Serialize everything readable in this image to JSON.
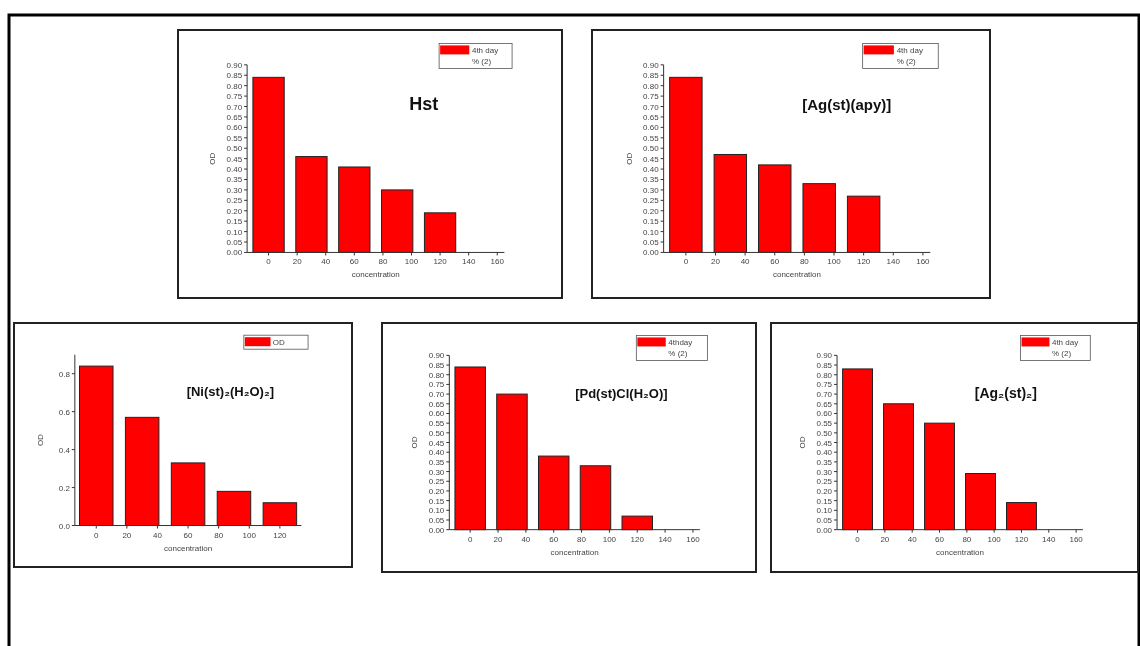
{
  "chart_data": [
    {
      "type": "bar",
      "title": "Hst",
      "xlabel": "concentration",
      "ylabel": "OD",
      "x": [
        0,
        30,
        60,
        90,
        120
      ],
      "xlim": [
        -15,
        165
      ],
      "xticks": [
        0,
        20,
        40,
        60,
        80,
        100,
        120,
        140,
        160
      ],
      "ylim": [
        0,
        0.9
      ],
      "yticks": [
        {
          "value": 0,
          "label": "0.00"
        },
        {
          "value": 0.05,
          "label": "0.05"
        },
        {
          "value": 0.1,
          "label": "0.10"
        },
        {
          "value": 0.15,
          "label": "0.15"
        },
        {
          "value": 0.2,
          "label": "0.20"
        },
        {
          "value": 0.25,
          "label": "0.25"
        },
        {
          "value": 0.3,
          "label": "0.30"
        },
        {
          "value": 0.35,
          "label": "0.35"
        },
        {
          "value": 0.4,
          "label": "0.40"
        },
        {
          "value": 0.45,
          "label": "0.45"
        },
        {
          "value": 0.5,
          "label": "0.50"
        },
        {
          "value": 0.55,
          "label": "0.55"
        },
        {
          "value": 0.6,
          "label": "0.60"
        },
        {
          "value": 0.65,
          "label": "0.65"
        },
        {
          "value": 0.7,
          "label": "0.70"
        },
        {
          "value": 0.75,
          "label": "0.75"
        },
        {
          "value": 0.8,
          "label": "0.80"
        },
        {
          "value": 0.85,
          "label": "0.85"
        },
        {
          "value": 0.9,
          "label": "0.90"
        }
      ],
      "legend": "top right",
      "series": [
        {
          "name": "4th day",
          "color": "#ff0000",
          "values": [
            0.84,
            0.46,
            0.41,
            0.3,
            0.19
          ]
        },
        {
          "name": "% (2)",
          "values": [
            null,
            null,
            null,
            null,
            null
          ]
        }
      ]
    },
    {
      "type": "bar",
      "title": "[Ag(st)(apy)]",
      "xlabel": "concentration",
      "ylabel": "OD",
      "x": [
        0,
        30,
        60,
        90,
        120
      ],
      "xlim": [
        -15,
        165
      ],
      "xticks": [
        0,
        20,
        40,
        60,
        80,
        100,
        120,
        140,
        160
      ],
      "ylim": [
        0,
        0.9
      ],
      "yticks": [
        {
          "value": 0,
          "label": "0.00"
        },
        {
          "value": 0.05,
          "label": "0.05"
        },
        {
          "value": 0.1,
          "label": "0.10"
        },
        {
          "value": 0.15,
          "label": "0.15"
        },
        {
          "value": 0.2,
          "label": "0.20"
        },
        {
          "value": 0.25,
          "label": "0.25"
        },
        {
          "value": 0.3,
          "label": "0.30"
        },
        {
          "value": 0.35,
          "label": "0.35"
        },
        {
          "value": 0.4,
          "label": "0.40"
        },
        {
          "value": 0.45,
          "label": "0.45"
        },
        {
          "value": 0.5,
          "label": "0.50"
        },
        {
          "value": 0.55,
          "label": "0.55"
        },
        {
          "value": 0.6,
          "label": "0.60"
        },
        {
          "value": 0.65,
          "label": "0.65"
        },
        {
          "value": 0.7,
          "label": "0.70"
        },
        {
          "value": 0.75,
          "label": "0.75"
        },
        {
          "value": 0.8,
          "label": "0.80"
        },
        {
          "value": 0.85,
          "label": "0.85"
        },
        {
          "value": 0.9,
          "label": "0.90"
        }
      ],
      "legend": "top right",
      "series": [
        {
          "name": "4th day",
          "color": "#ff0000",
          "values": [
            0.84,
            0.47,
            0.42,
            0.33,
            0.27
          ]
        },
        {
          "name": "% (2)",
          "values": [
            null,
            null,
            null,
            null,
            null
          ]
        }
      ]
    },
    {
      "type": "bar",
      "title": "[Ni(st)₂(H₂O)₂]",
      "xlabel": "concentration",
      "ylabel": "OD",
      "x": [
        0,
        30,
        60,
        90,
        120
      ],
      "xlim": [
        -14,
        134
      ],
      "xticks": [
        0,
        20,
        40,
        60,
        80,
        100,
        120
      ],
      "ylim": [
        0,
        0.9
      ],
      "yticks": [
        {
          "value": 0,
          "label": "0.0"
        },
        {
          "value": 0.2,
          "label": "0.2"
        },
        {
          "value": 0.4,
          "label": "0.4"
        },
        {
          "value": 0.6,
          "label": "0.6"
        },
        {
          "value": 0.8,
          "label": "0.8"
        }
      ],
      "legend": "top right",
      "series": [
        {
          "name": "OD",
          "color": "#ff0000",
          "values": [
            0.84,
            0.57,
            0.33,
            0.18,
            0.12
          ]
        }
      ]
    },
    {
      "type": "bar",
      "title": "[Pd(st)Cl(H₂O)]",
      "xlabel": "concentration",
      "ylabel": "OD",
      "x": [
        0,
        30,
        60,
        90,
        120
      ],
      "xlim": [
        -15,
        165
      ],
      "xticks": [
        0,
        20,
        40,
        60,
        80,
        100,
        120,
        140,
        160
      ],
      "ylim": [
        0,
        0.9
      ],
      "yticks": [
        {
          "value": 0,
          "label": "0.00"
        },
        {
          "value": 0.05,
          "label": "0.05"
        },
        {
          "value": 0.1,
          "label": "0.10"
        },
        {
          "value": 0.15,
          "label": "0.15"
        },
        {
          "value": 0.2,
          "label": "0.20"
        },
        {
          "value": 0.25,
          "label": "0.25"
        },
        {
          "value": 0.3,
          "label": "0.30"
        },
        {
          "value": 0.35,
          "label": "0.35"
        },
        {
          "value": 0.4,
          "label": "0.40"
        },
        {
          "value": 0.45,
          "label": "0.45"
        },
        {
          "value": 0.5,
          "label": "0.50"
        },
        {
          "value": 0.55,
          "label": "0.55"
        },
        {
          "value": 0.6,
          "label": "0.60"
        },
        {
          "value": 0.65,
          "label": "0.65"
        },
        {
          "value": 0.7,
          "label": "0.70"
        },
        {
          "value": 0.75,
          "label": "0.75"
        },
        {
          "value": 0.8,
          "label": "0.80"
        },
        {
          "value": 0.85,
          "label": "0.85"
        },
        {
          "value": 0.9,
          "label": "0.90"
        }
      ],
      "legend": "top right",
      "series": [
        {
          "name": "4thday",
          "color": "#ff0000",
          "values": [
            0.84,
            0.7,
            0.38,
            0.33,
            0.07
          ]
        },
        {
          "name": "% (2)",
          "values": [
            null,
            null,
            null,
            null,
            null
          ]
        }
      ]
    },
    {
      "type": "bar",
      "title": "[Ag₂(st)₂]",
      "xlabel": "concentration",
      "ylabel": "OD",
      "x": [
        0,
        30,
        60,
        90,
        120
      ],
      "xlim": [
        -15,
        165
      ],
      "xticks": [
        0,
        20,
        40,
        60,
        80,
        100,
        120,
        140,
        160
      ],
      "ylim": [
        0,
        0.9
      ],
      "yticks": [
        {
          "value": 0,
          "label": "0.00"
        },
        {
          "value": 0.05,
          "label": "0.05"
        },
        {
          "value": 0.1,
          "label": "0.10"
        },
        {
          "value": 0.15,
          "label": "0.15"
        },
        {
          "value": 0.2,
          "label": "0.20"
        },
        {
          "value": 0.25,
          "label": "0.25"
        },
        {
          "value": 0.3,
          "label": "0.30"
        },
        {
          "value": 0.35,
          "label": "0.35"
        },
        {
          "value": 0.4,
          "label": "0.40"
        },
        {
          "value": 0.45,
          "label": "0.45"
        },
        {
          "value": 0.5,
          "label": "0.50"
        },
        {
          "value": 0.55,
          "label": "0.55"
        },
        {
          "value": 0.6,
          "label": "0.60"
        },
        {
          "value": 0.65,
          "label": "0.65"
        },
        {
          "value": 0.7,
          "label": "0.70"
        },
        {
          "value": 0.75,
          "label": "0.75"
        },
        {
          "value": 0.8,
          "label": "0.80"
        },
        {
          "value": 0.85,
          "label": "0.85"
        },
        {
          "value": 0.9,
          "label": "0.90"
        }
      ],
      "legend": "top right",
      "series": [
        {
          "name": "4th day",
          "color": "#ff0000",
          "values": [
            0.83,
            0.65,
            0.55,
            0.29,
            0.14
          ]
        },
        {
          "name": "% (2)",
          "values": [
            null,
            null,
            null,
            null,
            null
          ]
        }
      ]
    }
  ]
}
